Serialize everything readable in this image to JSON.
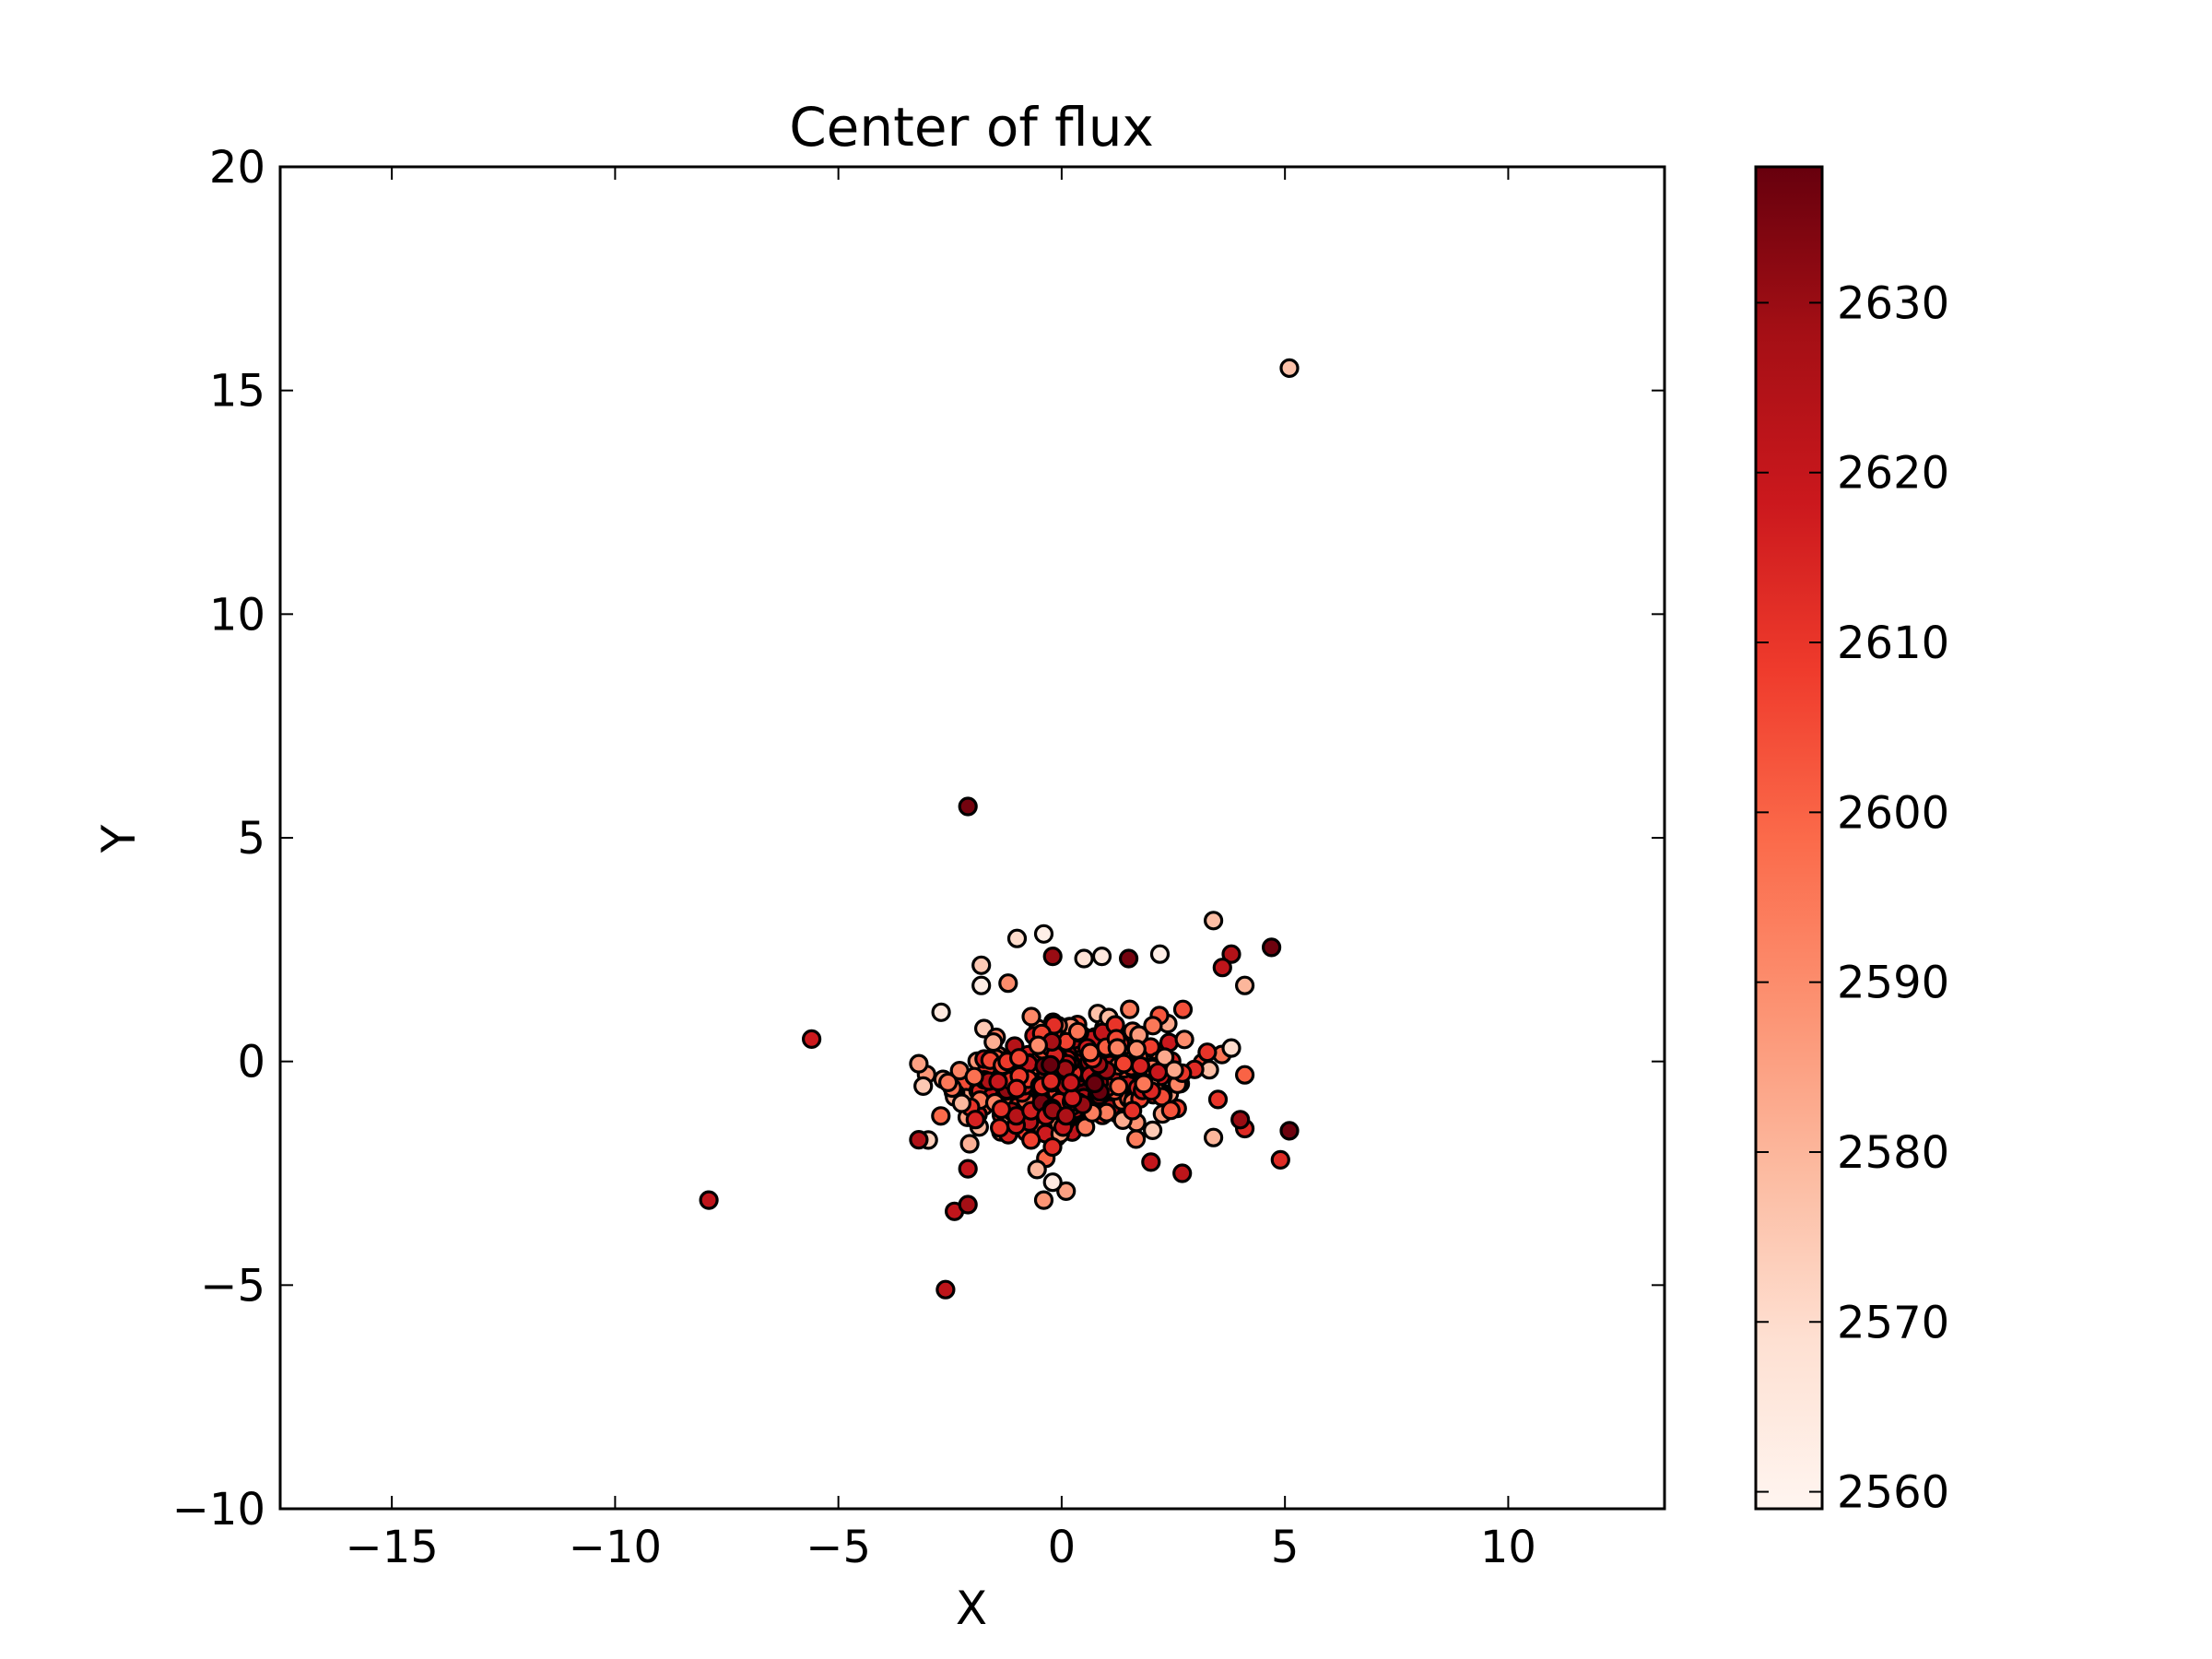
{
  "chart_data": {
    "type": "scatter",
    "title": "Center of flux",
    "xlabel": "X",
    "ylabel": "Y",
    "xlim": [
      -17.5,
      13.5
    ],
    "ylim": [
      -10,
      20
    ],
    "xticks": [
      -15,
      -10,
      -5,
      0,
      5,
      10
    ],
    "yticks": [
      -10,
      -5,
      0,
      5,
      10,
      15,
      20
    ],
    "grid": false,
    "colormap": "Reds",
    "colorbar": {
      "range": [
        2559,
        2638
      ],
      "ticks": [
        2560,
        2570,
        2580,
        2590,
        2600,
        2610,
        2620,
        2630
      ],
      "colors": [
        "#fff5f0",
        "#fee0d2",
        "#fcbba1",
        "#fc9272",
        "#fb6a4a",
        "#ef3b2c",
        "#cb181d",
        "#a50f15",
        "#67000d"
      ]
    },
    "points": [
      {
        "x": 5.1,
        "y": 15.5,
        "c": 2577
      },
      {
        "x": -2.1,
        "y": 5.7,
        "c": 2636
      },
      {
        "x": -5.6,
        "y": 0.5,
        "c": 2618
      },
      {
        "x": -7.9,
        "y": -3.1,
        "c": 2621
      },
      {
        "x": -2.6,
        "y": -5.1,
        "c": 2622
      },
      {
        "x": 5.1,
        "y": -1.55,
        "c": 2637
      },
      {
        "x": 4.9,
        "y": -2.2,
        "c": 2613
      },
      {
        "x": 4.7,
        "y": 2.55,
        "c": 2637
      },
      {
        "x": 3.4,
        "y": 3.15,
        "c": 2578
      },
      {
        "x": 3.8,
        "y": 2.4,
        "c": 2625
      },
      {
        "x": 3.6,
        "y": 2.1,
        "c": 2622
      },
      {
        "x": 4.1,
        "y": 1.7,
        "c": 2580
      },
      {
        "x": 2.2,
        "y": 2.4,
        "c": 2562
      },
      {
        "x": 1.5,
        "y": 2.3,
        "c": 2636
      },
      {
        "x": 0.9,
        "y": 2.35,
        "c": 2565
      },
      {
        "x": 0.5,
        "y": 2.3,
        "c": 2568
      },
      {
        "x": -0.2,
        "y": 2.35,
        "c": 2630
      },
      {
        "x": -0.4,
        "y": 2.85,
        "c": 2562
      },
      {
        "x": -1.0,
        "y": 2.75,
        "c": 2570
      },
      {
        "x": -1.8,
        "y": 2.15,
        "c": 2575
      },
      {
        "x": -1.8,
        "y": 1.7,
        "c": 2563
      },
      {
        "x": -1.2,
        "y": 1.75,
        "c": 2590
      },
      {
        "x": -2.7,
        "y": 1.1,
        "c": 2565
      },
      {
        "x": -3.2,
        "y": -0.05,
        "c": 2585
      },
      {
        "x": -3.1,
        "y": -0.55,
        "c": 2575
      },
      {
        "x": -3.2,
        "y": -1.75,
        "c": 2625
      },
      {
        "x": -2.4,
        "y": -3.35,
        "c": 2621
      },
      {
        "x": -2.1,
        "y": -3.2,
        "c": 2628
      },
      {
        "x": -2.1,
        "y": -2.4,
        "c": 2620
      },
      {
        "x": -0.4,
        "y": -3.1,
        "c": 2588
      },
      {
        "x": 0.1,
        "y": -2.9,
        "c": 2585
      },
      {
        "x": -0.2,
        "y": -2.7,
        "c": 2564
      },
      {
        "x": 2.7,
        "y": -2.5,
        "c": 2622
      },
      {
        "x": 2.0,
        "y": -2.25,
        "c": 2620
      },
      {
        "x": 4.1,
        "y": -1.5,
        "c": 2613
      },
      {
        "x": 4.0,
        "y": -1.3,
        "c": 2630
      },
      {
        "x": 3.4,
        "y": -1.7,
        "c": 2580
      },
      {
        "x": 4.1,
        "y": -0.3,
        "c": 2600
      },
      {
        "x": 3.8,
        "y": 0.3,
        "c": 2570
      },
      {
        "x": 3.5,
        "y": -0.85,
        "c": 2610
      }
    ],
    "cluster": {
      "center_x": 0.2,
      "center_y": -0.4,
      "sx": 1.1,
      "sy": 0.6,
      "count": 520,
      "seed": 7
    }
  }
}
